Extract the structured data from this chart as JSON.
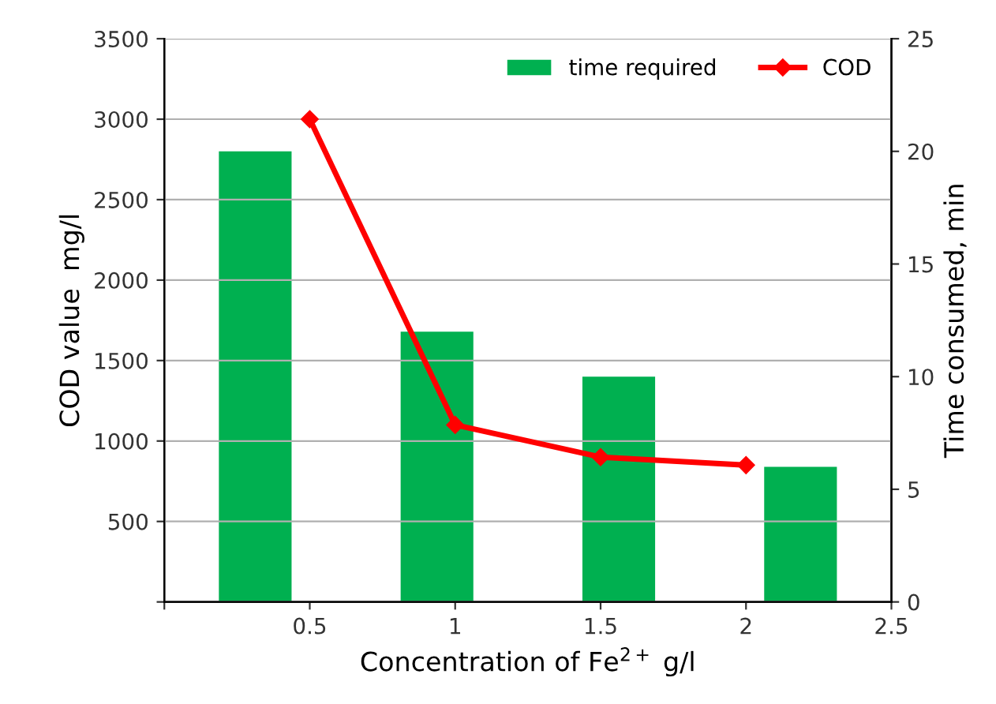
{
  "chart_data": {
    "type": "line",
    "xlabel": "Concentration of Fe$^{2+}$ g/l",
    "ylabel": "COD value  mg/l",
    "y2label": "Time consumed, min",
    "xlim": [
      0,
      2.5
    ],
    "xticks": [
      {
        "value": 0,
        "label": null
      },
      0.5,
      1,
      1.5,
      2,
      2.5
    ],
    "ylim": [
      0,
      3500
    ],
    "yticks": [
      {
        "value": 0,
        "label": null
      },
      500,
      1000,
      1500,
      2000,
      2500,
      3000,
      3500
    ],
    "y2lim": [
      0,
      25
    ],
    "y2ticks": [
      0,
      5,
      10,
      15,
      20,
      25
    ],
    "grid": "y",
    "legend": "top right",
    "series": [
      {
        "name": "time required",
        "type": "bar",
        "axis": "y2",
        "color": "#00b050",
        "x": [
          0.3125,
          0.9375,
          1.5625,
          2.1875
        ],
        "values": [
          20,
          12,
          10,
          6
        ]
      },
      {
        "name": "COD",
        "color": "#ff0000",
        "marker": "diamond",
        "x": [
          0.5,
          1,
          1.5,
          2
        ],
        "values": [
          3000,
          1100,
          900,
          850
        ]
      }
    ]
  }
}
